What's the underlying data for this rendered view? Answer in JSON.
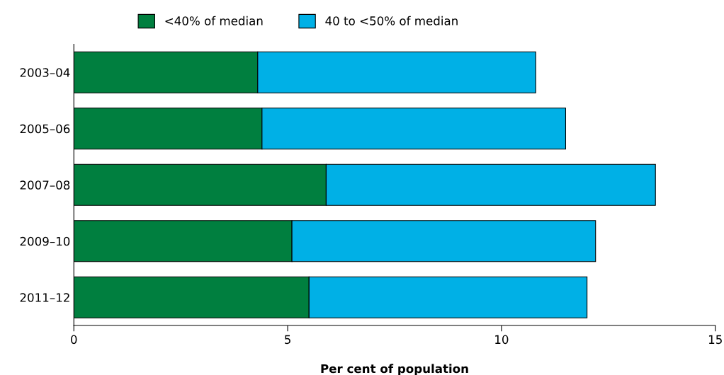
{
  "chart_data": {
    "type": "bar",
    "orientation": "horizontal",
    "stacked": true,
    "xlabel": "Per cent of population",
    "categories": [
      "2003–04",
      "2005–06",
      "2007–08",
      "2009–10",
      "2011–12"
    ],
    "series": [
      {
        "name": "<40% of median",
        "color": "#007f3f",
        "values": [
          4.3,
          4.4,
          5.9,
          5.1,
          5.5
        ]
      },
      {
        "name": "40 to <50% of median",
        "color": "#00b0e6",
        "values": [
          6.5,
          7.1,
          7.7,
          7.1,
          6.5
        ]
      }
    ],
    "xlim": [
      0,
      15
    ],
    "xticks": [
      0,
      5,
      10,
      15
    ],
    "grid": false,
    "legend": "top"
  }
}
